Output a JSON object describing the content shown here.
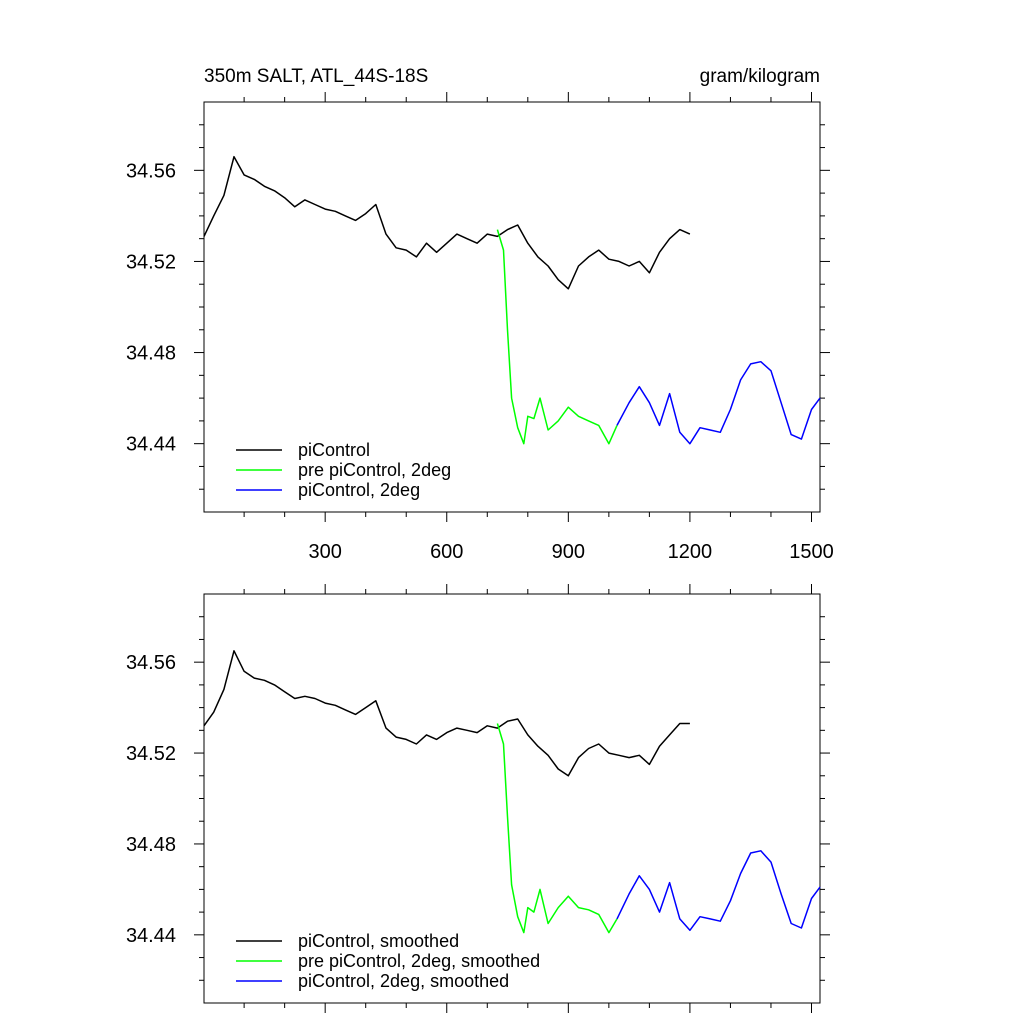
{
  "header": {
    "title": "350m SALT, ATL_44S-18S",
    "units": "gram/kilogram"
  },
  "chart_data": [
    {
      "type": "line",
      "title": "350m SALT, ATL_44S-18S",
      "units": "gram/kilogram",
      "xlim": [
        1,
        1521
      ],
      "ylim": [
        34.41,
        34.59
      ],
      "x_ticks": [
        300,
        600,
        900,
        1200,
        1500
      ],
      "x_tick_labels": [
        "300",
        "600",
        "900",
        "1200",
        "1500"
      ],
      "y_ticks": [
        34.44,
        34.48,
        34.52,
        34.56
      ],
      "y_tick_labels": [
        "34.44",
        "34.48",
        "34.52",
        "34.56"
      ],
      "grid": false,
      "legend_position": "bottom-left",
      "series": [
        {
          "name": "piControl",
          "color": "#000000",
          "x": [
            1,
            25,
            50,
            75,
            100,
            125,
            150,
            175,
            200,
            225,
            250,
            275,
            300,
            325,
            350,
            375,
            400,
            425,
            450,
            475,
            500,
            525,
            550,
            575,
            600,
            625,
            650,
            675,
            700,
            725,
            750,
            775,
            800,
            825,
            850,
            875,
            900,
            925,
            950,
            975,
            1000,
            1025,
            1050,
            1075,
            1100,
            1125,
            1150,
            1175,
            1200
          ],
          "y": [
            34.531,
            34.54,
            34.549,
            34.566,
            34.558,
            34.556,
            34.553,
            34.551,
            34.548,
            34.544,
            34.547,
            34.545,
            34.543,
            34.542,
            34.54,
            34.538,
            34.541,
            34.545,
            34.532,
            34.526,
            34.525,
            34.522,
            34.528,
            34.524,
            34.528,
            34.532,
            34.53,
            34.528,
            34.532,
            34.531,
            34.534,
            34.536,
            34.528,
            34.522,
            34.518,
            34.512,
            34.508,
            34.518,
            34.522,
            34.525,
            34.521,
            34.52,
            34.518,
            34.52,
            34.515,
            34.524,
            34.53,
            34.534,
            34.532
          ]
        },
        {
          "name": "pre piControl, 2deg",
          "color": "#00ff00",
          "x": [
            725,
            740,
            750,
            760,
            775,
            790,
            800,
            815,
            830,
            850,
            875,
            900,
            925,
            950,
            975,
            1000,
            1020
          ],
          "y": [
            34.534,
            34.525,
            34.49,
            34.46,
            34.447,
            34.44,
            34.452,
            34.451,
            34.46,
            34.446,
            34.45,
            34.456,
            34.452,
            34.45,
            34.448,
            34.44,
            34.448
          ]
        },
        {
          "name": "piControl, 2deg",
          "color": "#0000ff",
          "x": [
            1020,
            1050,
            1075,
            1100,
            1125,
            1150,
            1175,
            1200,
            1225,
            1250,
            1275,
            1300,
            1325,
            1350,
            1375,
            1400,
            1425,
            1450,
            1475,
            1500,
            1521
          ],
          "y": [
            34.448,
            34.458,
            34.465,
            34.458,
            34.448,
            34.462,
            34.445,
            34.44,
            34.447,
            34.446,
            34.445,
            34.455,
            34.468,
            34.475,
            34.476,
            34.472,
            34.458,
            34.444,
            34.442,
            34.455,
            34.46
          ]
        }
      ]
    },
    {
      "type": "line",
      "xlim": [
        1,
        1521
      ],
      "ylim": [
        34.41,
        34.59
      ],
      "x_ticks": [
        300,
        600,
        900,
        1200,
        1500
      ],
      "y_ticks": [
        34.44,
        34.48,
        34.52,
        34.56
      ],
      "y_tick_labels": [
        "34.44",
        "34.48",
        "34.52",
        "34.56"
      ],
      "grid": false,
      "legend_position": "bottom-left",
      "series": [
        {
          "name": "piControl, smoothed",
          "color": "#000000",
          "x": [
            1,
            25,
            50,
            75,
            100,
            125,
            150,
            175,
            200,
            225,
            250,
            275,
            300,
            325,
            350,
            375,
            400,
            425,
            450,
            475,
            500,
            525,
            550,
            575,
            600,
            625,
            650,
            675,
            700,
            725,
            750,
            775,
            800,
            825,
            850,
            875,
            900,
            925,
            950,
            975,
            1000,
            1025,
            1050,
            1075,
            1100,
            1125,
            1150,
            1175,
            1200
          ],
          "y": [
            34.532,
            34.538,
            34.548,
            34.565,
            34.556,
            34.553,
            34.552,
            34.55,
            34.547,
            34.544,
            34.545,
            34.544,
            34.542,
            34.541,
            34.539,
            34.537,
            34.54,
            34.543,
            34.531,
            34.527,
            34.526,
            34.524,
            34.528,
            34.526,
            34.529,
            34.531,
            34.53,
            34.529,
            34.532,
            34.531,
            34.534,
            34.535,
            34.528,
            34.523,
            34.519,
            34.513,
            34.51,
            34.518,
            34.522,
            34.524,
            34.52,
            34.519,
            34.518,
            34.519,
            34.515,
            34.523,
            34.528,
            34.533,
            34.533
          ]
        },
        {
          "name": "pre piControl, 2deg, smoothed",
          "color": "#00ff00",
          "x": [
            725,
            740,
            750,
            760,
            775,
            790,
            800,
            815,
            830,
            850,
            875,
            900,
            925,
            950,
            975,
            1000,
            1020
          ],
          "y": [
            34.533,
            34.524,
            34.492,
            34.462,
            34.448,
            34.441,
            34.452,
            34.45,
            34.46,
            34.445,
            34.452,
            34.457,
            34.452,
            34.451,
            34.449,
            34.441,
            34.447
          ]
        },
        {
          "name": "piControl, 2deg, smoothed",
          "color": "#0000ff",
          "x": [
            1020,
            1050,
            1075,
            1100,
            1125,
            1150,
            1175,
            1200,
            1225,
            1250,
            1275,
            1300,
            1325,
            1350,
            1375,
            1400,
            1425,
            1450,
            1475,
            1500,
            1521
          ],
          "y": [
            34.447,
            34.458,
            34.466,
            34.46,
            34.45,
            34.463,
            34.447,
            34.442,
            34.448,
            34.447,
            34.446,
            34.455,
            34.467,
            34.476,
            34.477,
            34.472,
            34.458,
            34.445,
            34.443,
            34.456,
            34.461
          ]
        }
      ]
    }
  ]
}
